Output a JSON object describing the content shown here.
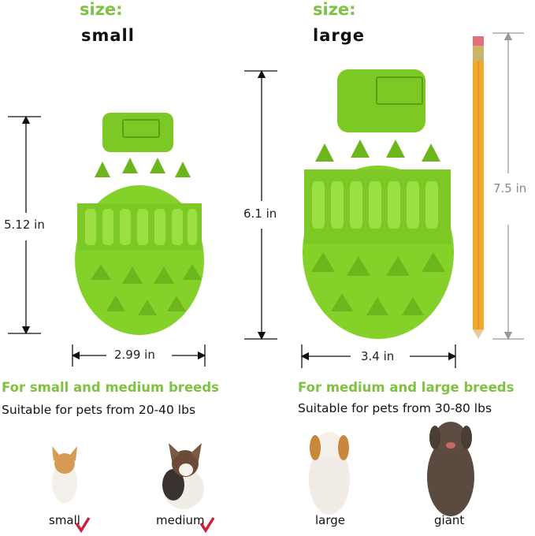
{
  "small": {
    "size_label": "size:",
    "name": "small",
    "height": "5.12 in",
    "width": "2.99 in",
    "heading": "For small and medium breeds",
    "suitable": "Suitable for pets from 20-40 lbs"
  },
  "large": {
    "size_label": "size:",
    "name": "large",
    "height": "6.1 in",
    "width": "3.4 in",
    "pencil_height": "7.5 in",
    "heading": "For medium and large breeds",
    "suitable": "Suitable for pets from 30-80 lbs"
  },
  "dogs": [
    {
      "label": "small",
      "checked": true
    },
    {
      "label": "medium",
      "checked": true
    },
    {
      "label": "large",
      "checked": false
    },
    {
      "label": "giant",
      "checked": false
    }
  ],
  "colors": {
    "toy": "#84d12a",
    "accent": "#7ec242",
    "check": "#d0213a",
    "pencil": "#f0a830"
  }
}
